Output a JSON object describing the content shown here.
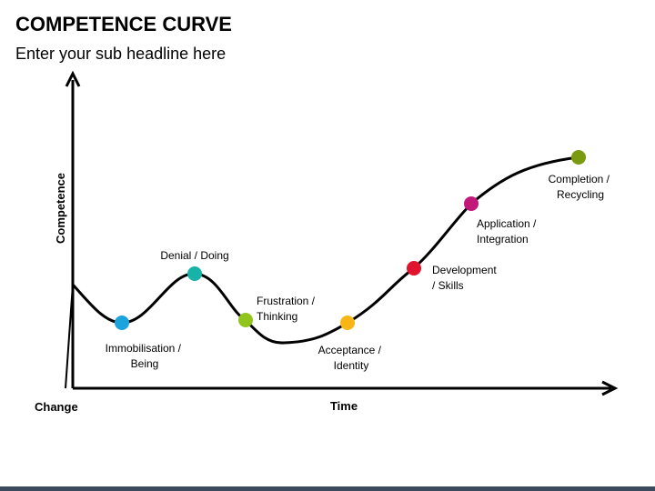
{
  "slide": {
    "title": "COMPETENCE CURVE",
    "subtitle": "Enter your sub headline here",
    "footer_color": "#3b4a5c"
  },
  "diagram": {
    "y_axis_label": "Competence",
    "x_axis_label": "Time",
    "origin_label": "Change",
    "line_color": "#000000",
    "stages": [
      {
        "label_lines": [
          "Immobilisation /",
          "Being"
        ],
        "color": "#1aa3dc"
      },
      {
        "label_lines": [
          "Denial / Doing"
        ],
        "color": "#18b3a8"
      },
      {
        "label_lines": [
          "Frustration /",
          "Thinking"
        ],
        "color": "#92c41e"
      },
      {
        "label_lines": [
          "Acceptance /",
          "Identity"
        ],
        "color": "#f8b614"
      },
      {
        "label_lines": [
          "Development",
          "/ Skills"
        ],
        "color": "#e0142d"
      },
      {
        "label_lines": [
          "Application /",
          "Integration"
        ],
        "color": "#c1187a"
      },
      {
        "label_lines": [
          "Completion /",
          "Recycling"
        ],
        "color": "#7a9a10"
      }
    ]
  }
}
